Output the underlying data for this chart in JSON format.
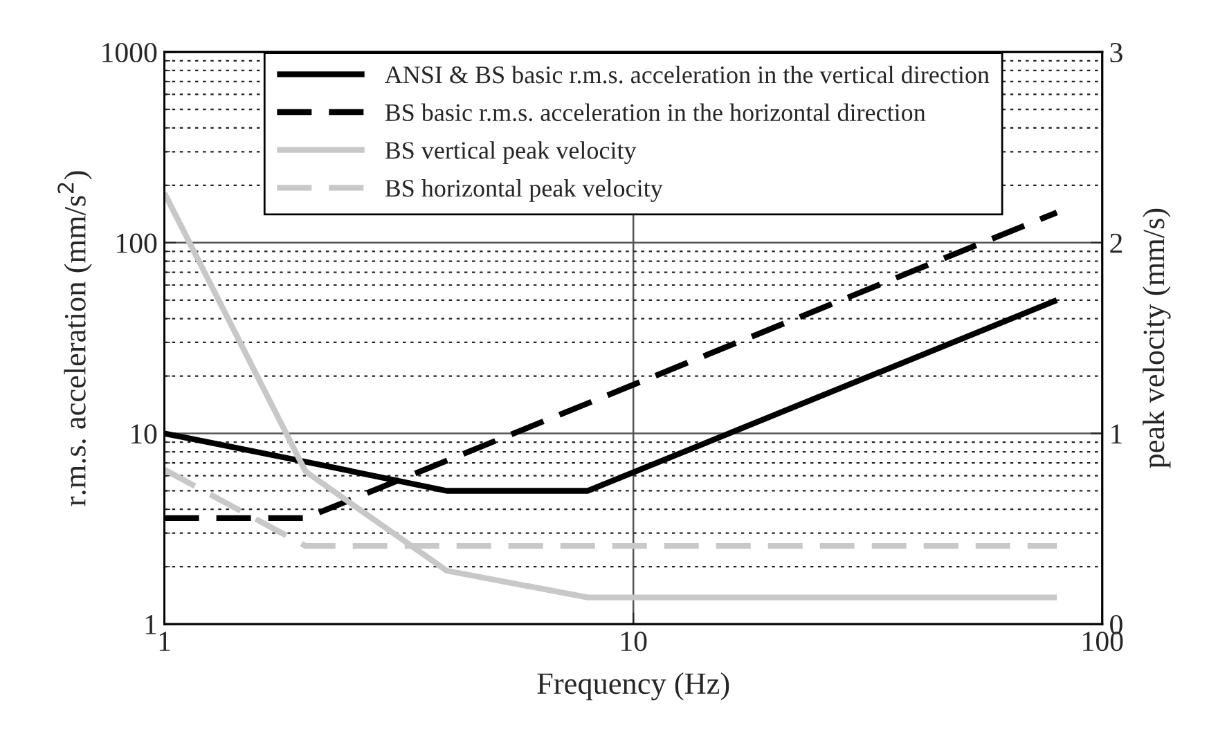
{
  "chart_data": {
    "type": "line",
    "xlabel": "Frequency (Hz)",
    "ylabel": "r.m.s. acceleration (mm/s$^{2}$)",
    "y2label": "peak velocity (mm/s)",
    "log": "xy",
    "grid": true,
    "legend": "top",
    "xlim": [
      1,
      100
    ],
    "xticks": [
      1,
      10,
      100
    ],
    "ylim": [
      1,
      1000
    ],
    "yticks": [
      1,
      10,
      100,
      1000
    ],
    "y2lim": [
      0,
      3
    ],
    "y2ticks": [
      0,
      1,
      2,
      3
    ],
    "series": [
      {
        "name": "ANSI & BS basic r.m.s. acceleration in the vertical direction",
        "color": "#000000",
        "line_style": "solid",
        "x": [
          1,
          2,
          4,
          8,
          80
        ],
        "values": [
          10,
          7.1,
          5,
          5,
          50
        ]
      },
      {
        "name": "BS basic r.m.s. acceleration in the horizontal direction",
        "color": "#000000",
        "line_style": "dashed",
        "x": [
          1,
          2,
          80
        ],
        "values": [
          3.6,
          3.6,
          144
        ]
      },
      {
        "name": "BS vertical peak velocity",
        "color": "#c8c8c8",
        "line_style": "solid",
        "axis": "y2",
        "x": [
          1,
          2,
          4,
          8,
          80
        ],
        "values": [
          2.26,
          0.8,
          0.28,
          0.14,
          0.14
        ]
      },
      {
        "name": "BS horizontal peak velocity",
        "color": "#c8c8c8",
        "line_style": "dashed",
        "axis": "y2",
        "x": [
          1,
          2,
          80
        ],
        "values": [
          0.81,
          0.41,
          0.41
        ]
      }
    ]
  }
}
